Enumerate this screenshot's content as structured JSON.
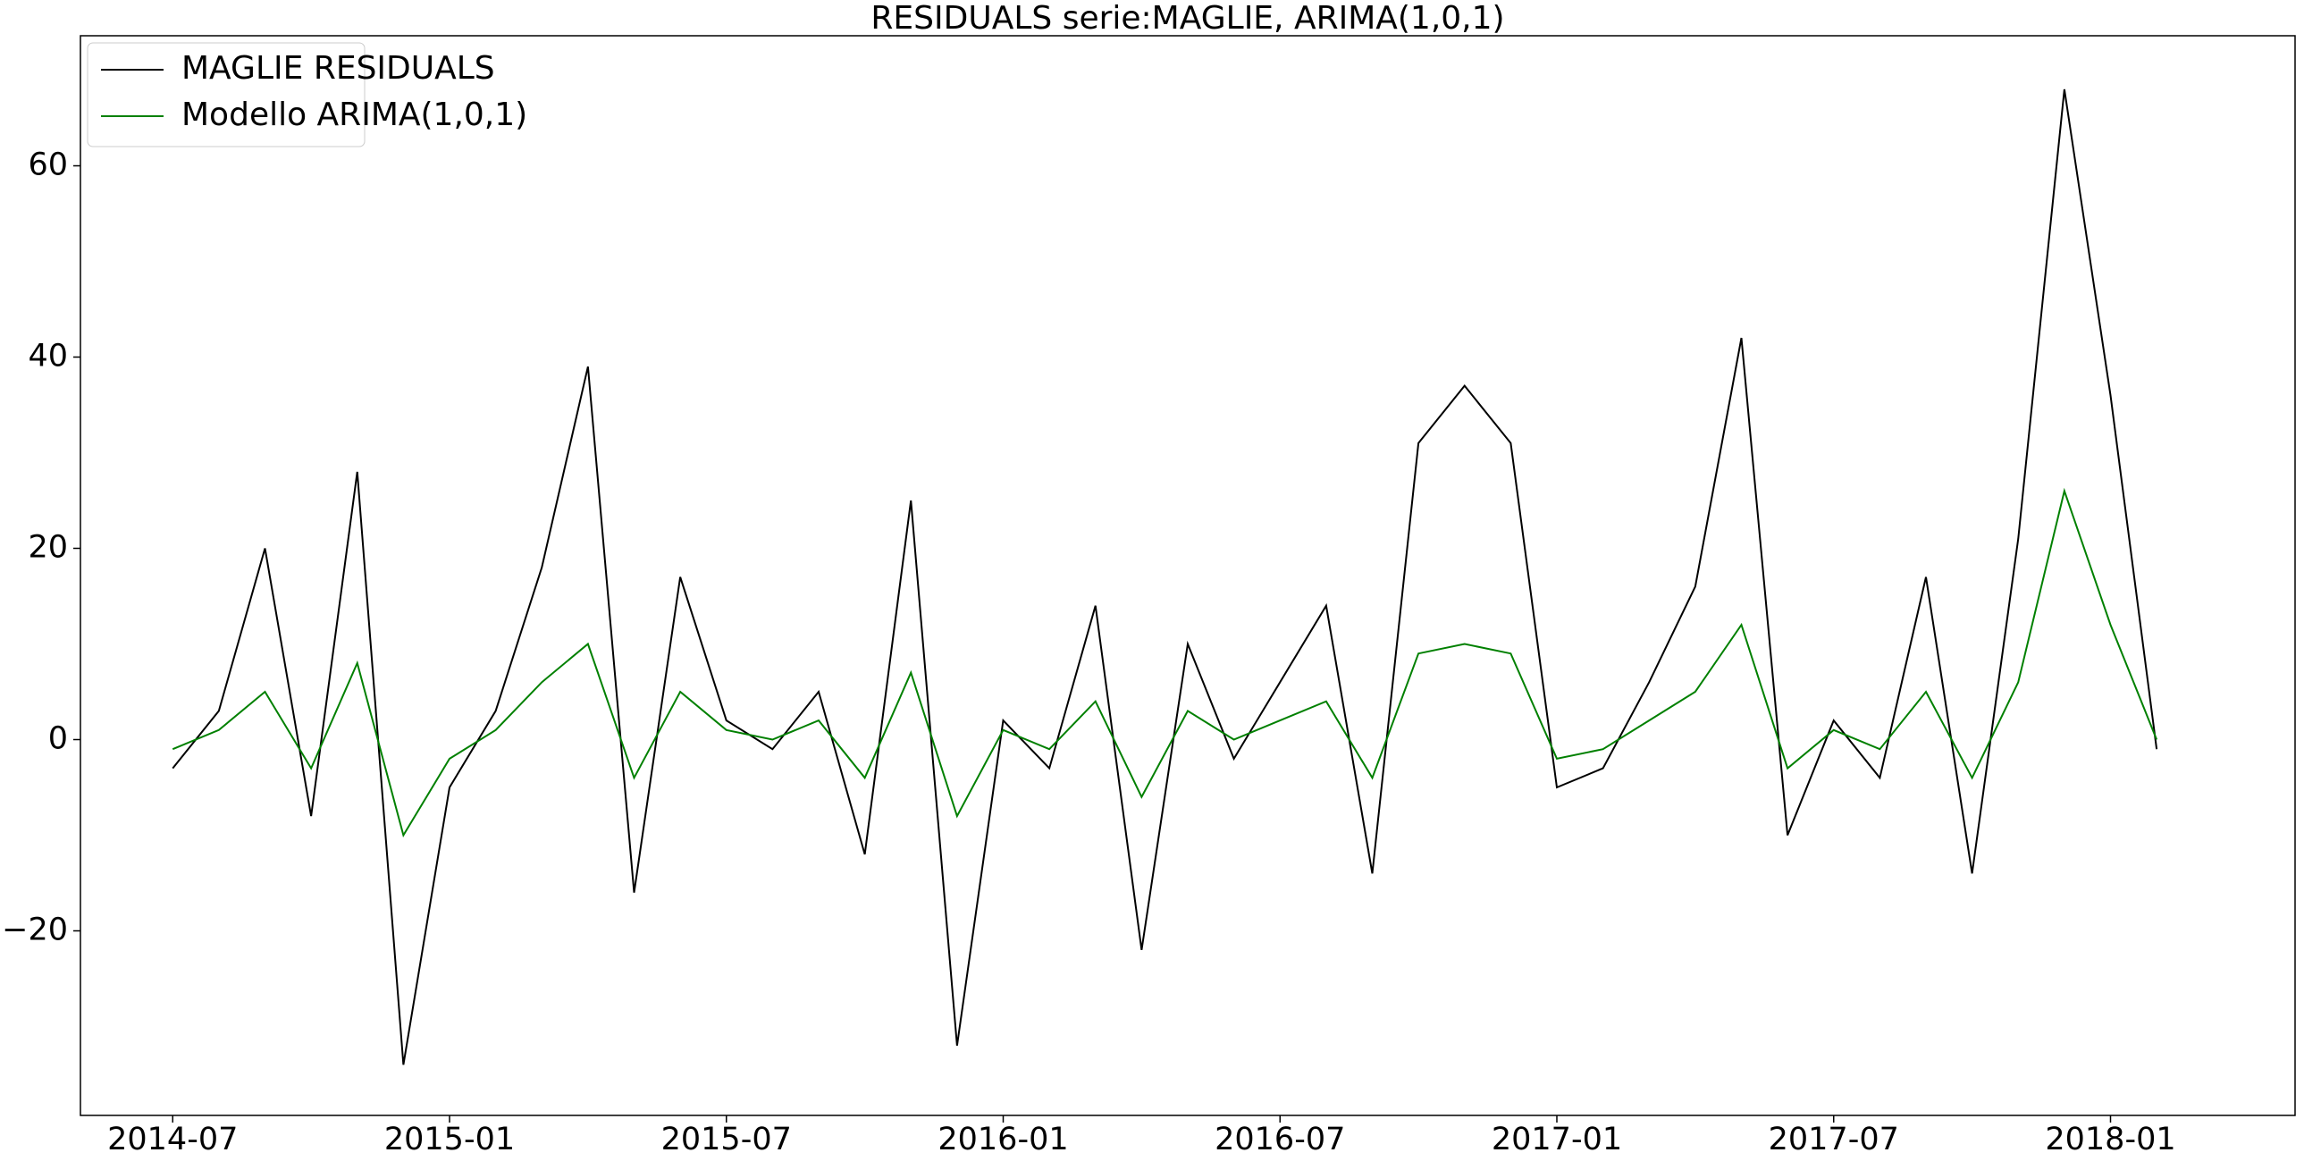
{
  "chart_data": {
    "type": "line",
    "title": "RESIDUALS serie:MAGLIE, ARIMA(1,0,1)",
    "x": [
      "2014-07",
      "2014-08",
      "2014-09",
      "2014-10",
      "2014-11",
      "2014-12",
      "2015-01",
      "2015-02",
      "2015-03",
      "2015-04",
      "2015-05",
      "2015-06",
      "2015-07",
      "2015-08",
      "2015-09",
      "2015-10",
      "2015-11",
      "2015-12",
      "2016-01",
      "2016-02",
      "2016-03",
      "2016-04",
      "2016-05",
      "2016-06",
      "2016-07",
      "2016-08",
      "2016-09",
      "2016-10",
      "2016-11",
      "2016-12",
      "2017-01",
      "2017-02",
      "2017-03",
      "2017-04",
      "2017-05",
      "2017-06",
      "2017-07",
      "2017-08",
      "2017-09",
      "2017-10",
      "2017-11",
      "2017-12",
      "2018-01",
      "2018-02"
    ],
    "series": [
      {
        "name": "MAGLIE RESIDUALS",
        "color": "#000000",
        "values": [
          -3,
          3,
          20,
          -8,
          28,
          -34,
          -5,
          3,
          18,
          39,
          -16,
          17,
          2,
          -1,
          5,
          -12,
          25,
          -32,
          2,
          -3,
          14,
          -22,
          10,
          -2,
          6,
          14,
          -14,
          31,
          37,
          31,
          -5,
          -3,
          6,
          16,
          42,
          -10,
          2,
          -4,
          17,
          -14,
          21,
          68,
          36,
          -1
        ]
      },
      {
        "name": "Modello ARIMA(1,0,1)",
        "color": "#008000",
        "values": [
          -1,
          1,
          5,
          -3,
          8,
          -10,
          -2,
          1,
          6,
          10,
          -4,
          5,
          1,
          0,
          2,
          -4,
          7,
          -8,
          1,
          -1,
          4,
          -6,
          3,
          0,
          2,
          4,
          -4,
          9,
          10,
          9,
          -2,
          -1,
          2,
          5,
          12,
          -3,
          1,
          -1,
          5,
          -4,
          6,
          26,
          12,
          0
        ]
      }
    ],
    "xlim": [
      "2014-05",
      "2018-05"
    ],
    "xticks": [
      "2014-07",
      "2015-01",
      "2015-07",
      "2016-01",
      "2016-07",
      "2017-01",
      "2017-07",
      "2018-01"
    ],
    "ylim": [
      -39.3,
      73.6
    ],
    "yticks": [
      {
        "value": -20,
        "label": "−20"
      },
      0,
      20,
      40,
      60
    ],
    "legend": "upper left",
    "grid": false
  }
}
